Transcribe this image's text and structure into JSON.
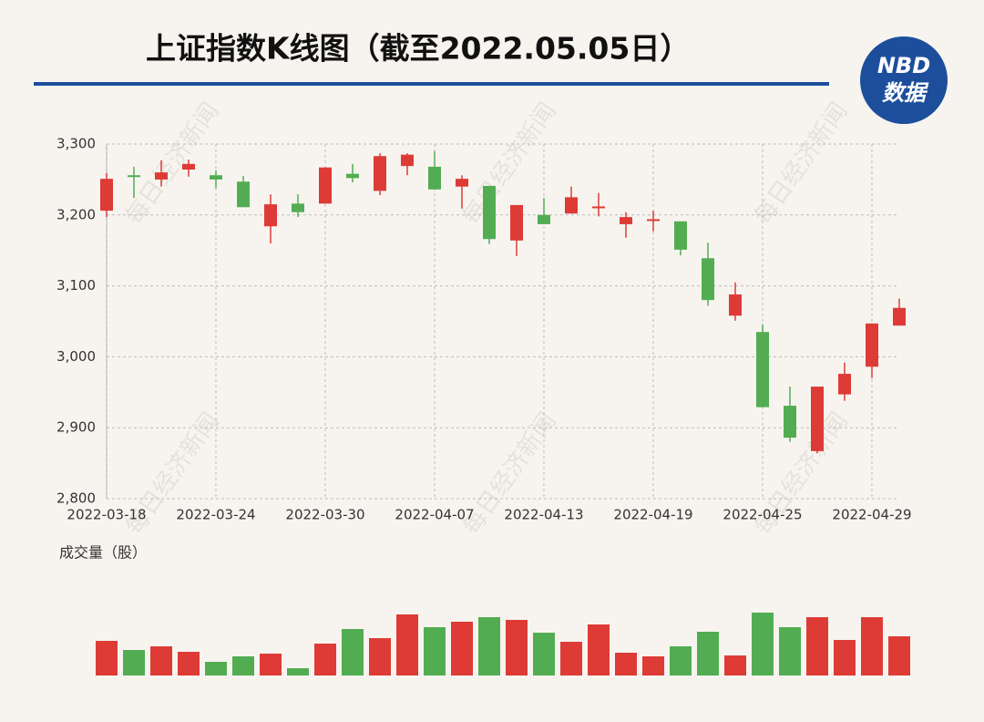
{
  "chart_data": {
    "type": "candlestick",
    "title": "上证指数K线图（截至2022.05.05日）",
    "logo": [
      "NBD",
      "数据"
    ],
    "watermark": "每日经济新闻",
    "volume_label": "成交量（股）",
    "categories": [
      "2022-03-18",
      null,
      null,
      null,
      "2022-03-24",
      null,
      null,
      null,
      "2022-03-30",
      null,
      null,
      null,
      "2022-04-07",
      null,
      null,
      null,
      "2022-04-13",
      null,
      null,
      null,
      "2022-04-19",
      null,
      null,
      null,
      "2022-04-25",
      null,
      null,
      null,
      "2022-04-29",
      null
    ],
    "open": [
      3206,
      3256,
      3250,
      3264,
      3256,
      3247,
      3184,
      3216,
      3216,
      3258,
      3234,
      3269,
      3268,
      3240,
      3241,
      3164,
      3200,
      3202,
      3210,
      3187,
      3192,
      3191,
      3139,
      3058,
      3035,
      2931,
      2867,
      2947,
      2986,
      3044
    ],
    "high": [
      3259,
      3268,
      3277,
      3278,
      3263,
      3255,
      3229,
      3229,
      3267,
      3272,
      3287,
      3287,
      3290,
      3256,
      3241,
      3214,
      3224,
      3240,
      3231,
      3204,
      3206,
      3191,
      3161,
      3105,
      3046,
      2958,
      2958,
      2992,
      3047,
      3082
    ],
    "low": [
      3197,
      3224,
      3240,
      3254,
      3238,
      3211,
      3160,
      3197,
      3216,
      3246,
      3228,
      3256,
      3236,
      3209,
      3159,
      3142,
      3187,
      3202,
      3198,
      3168,
      3177,
      3143,
      3072,
      3051,
      2929,
      2880,
      2864,
      2938,
      2970,
      3044
    ],
    "close": [
      3251,
      3254,
      3260,
      3272,
      3250,
      3211,
      3215,
      3204,
      3267,
      3252,
      3283,
      3285,
      3236,
      3251,
      3166,
      3214,
      3187,
      3225,
      3212,
      3197,
      3194,
      3151,
      3080,
      3088,
      2929,
      2886,
      2958,
      2976,
      3047,
      3069
    ],
    "volume": [
      38,
      28,
      32,
      26,
      15,
      21,
      24,
      8,
      35,
      51,
      41,
      67,
      53,
      59,
      64,
      61,
      47,
      37,
      56,
      25,
      21,
      32,
      48,
      22,
      69,
      53,
      64,
      39,
      64,
      43
    ],
    "volume_lim": [
      0,
      80
    ],
    "up_color": "#de3b36",
    "down_color": "#52ad52",
    "ylim": [
      2800,
      3300
    ],
    "yticks": [
      {
        "value": 2800,
        "label": "2,800"
      },
      {
        "value": 2900,
        "label": "2,900"
      },
      {
        "value": 3000,
        "label": "3,000"
      },
      {
        "value": 3100,
        "label": "3,100"
      },
      {
        "value": 3200,
        "label": "3,200"
      },
      {
        "value": 3300,
        "label": "3,300"
      }
    ],
    "grid": true
  }
}
